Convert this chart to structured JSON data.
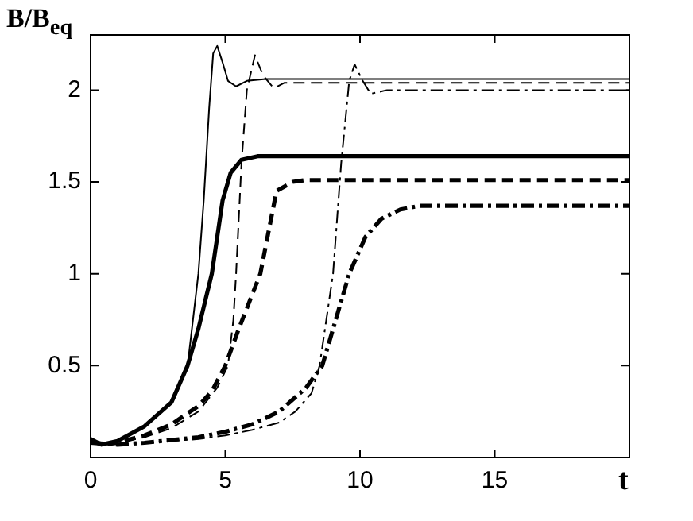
{
  "chart_data": {
    "type": "line",
    "xlabel": "t",
    "ylabel": "B/B$_{eq}$",
    "xlim": [
      0,
      20
    ],
    "xticks": [
      0,
      5,
      10,
      15
    ],
    "ylim": [
      0,
      2.3
    ],
    "yticks": [
      0.5,
      1,
      1.5,
      2
    ],
    "marker": "none",
    "series": [
      {
        "color": "#000000",
        "line_style": "solid",
        "x": [
          0,
          0.4,
          1,
          2,
          3,
          3.6,
          3.8,
          4.0,
          4.2,
          4.4,
          4.55,
          4.7,
          4.9,
          5.1,
          5.4,
          5.8,
          6.5,
          20
        ],
        "values": [
          0.1,
          0.07,
          0.09,
          0.17,
          0.3,
          0.5,
          0.75,
          1.0,
          1.4,
          1.9,
          2.2,
          2.24,
          2.15,
          2.05,
          2.02,
          2.05,
          2.06,
          2.06
        ]
      },
      {
        "color": "#000000",
        "line_style": "solid",
        "x": [
          0,
          0.4,
          1,
          2,
          3,
          3.6,
          4.0,
          4.5,
          4.9,
          5.2,
          5.6,
          6.2,
          20
        ],
        "values": [
          0.1,
          0.07,
          0.09,
          0.17,
          0.3,
          0.5,
          0.7,
          1.0,
          1.4,
          1.55,
          1.62,
          1.64,
          1.64
        ]
      },
      {
        "color": "#000000",
        "line_style": "dashed",
        "x": [
          0,
          0.5,
          1,
          2,
          3,
          4,
          4.7,
          5.1,
          5.3,
          5.4,
          5.6,
          5.8,
          6.1,
          6.4,
          6.8,
          7.2,
          20
        ],
        "values": [
          0.09,
          0.07,
          0.08,
          0.11,
          0.16,
          0.25,
          0.38,
          0.5,
          0.75,
          1.0,
          1.6,
          2.0,
          2.19,
          2.08,
          2.01,
          2.04,
          2.04
        ]
      },
      {
        "color": "#000000",
        "line_style": "dashed",
        "x": [
          0,
          0.5,
          1,
          2,
          3,
          4,
          4.5,
          5.0,
          5.5,
          6.3,
          6.9,
          7.5,
          8,
          20
        ],
        "values": [
          0.09,
          0.07,
          0.08,
          0.12,
          0.18,
          0.28,
          0.36,
          0.5,
          0.7,
          1.0,
          1.45,
          1.5,
          1.51,
          1.51
        ]
      },
      {
        "color": "#000000",
        "line_style": "dashdot",
        "x": [
          0,
          1,
          2,
          4,
          5,
          6,
          7,
          7.6,
          8.2,
          8.5,
          8.8,
          9.0,
          9.3,
          9.6,
          9.8,
          10.1,
          10.4,
          11,
          20
        ],
        "values": [
          0.08,
          0.07,
          0.08,
          0.1,
          0.12,
          0.15,
          0.19,
          0.25,
          0.35,
          0.5,
          0.8,
          1.0,
          1.6,
          2.05,
          2.14,
          2.05,
          1.98,
          2.0,
          2.0
        ]
      },
      {
        "color": "#000000",
        "line_style": "dashdot",
        "x": [
          0,
          1,
          2,
          4,
          5,
          6,
          7,
          8,
          8.6,
          9.1,
          9.6,
          10.2,
          10.8,
          11.5,
          12.2,
          20
        ],
        "values": [
          0.08,
          0.07,
          0.08,
          0.11,
          0.14,
          0.18,
          0.25,
          0.38,
          0.5,
          0.75,
          1.0,
          1.2,
          1.3,
          1.35,
          1.37,
          1.37
        ]
      }
    ]
  }
}
